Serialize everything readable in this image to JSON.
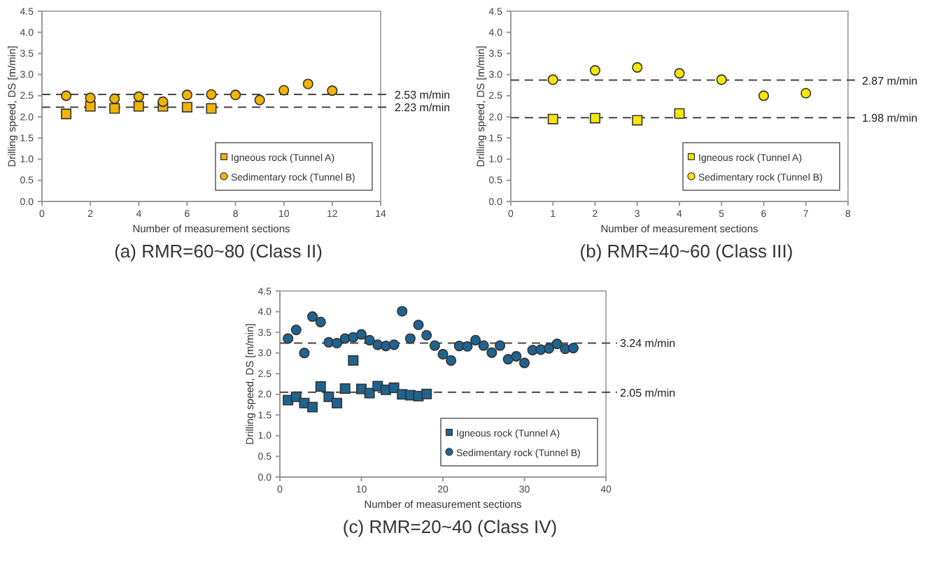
{
  "chart_data": [
    {
      "type": "scatter",
      "title": "(a) RMR=60~80 (Class II)",
      "xlabel": "Number of measurement sections",
      "ylabel": "Drilling speed, DS [m/min]",
      "xlim": [
        0,
        14
      ],
      "xticks": [
        0,
        2,
        4,
        6,
        8,
        10,
        12,
        14
      ],
      "ylim": [
        0,
        4.5
      ],
      "yticks": [
        {
          "value": 0,
          "label": "0.0"
        },
        {
          "value": 0.5,
          "label": "0.5"
        },
        {
          "value": 1,
          "label": "1.0"
        },
        {
          "value": 1.5,
          "label": "1.5"
        },
        {
          "value": 2,
          "label": "2.0"
        },
        {
          "value": 2.5,
          "label": "2.5"
        },
        {
          "value": 3,
          "label": "3.0"
        },
        {
          "value": 3.5,
          "label": "3.5"
        },
        {
          "value": 4,
          "label": "4.0"
        },
        {
          "value": 4.5,
          "label": "4.5"
        }
      ],
      "grid": false,
      "legend": "bottom right",
      "ref_lines": [
        {
          "axis": "y",
          "value": 2.53,
          "label": "2.53 m/min",
          "line_style": "dashed"
        },
        {
          "axis": "y",
          "value": 2.23,
          "label": "2.23 m/min",
          "line_style": "dashed"
        }
      ],
      "series": [
        {
          "name": "Igneous rock (Tunnel A)",
          "color": "#f0b400",
          "marker": "square",
          "x": [
            1,
            2,
            3,
            4,
            5,
            6,
            7
          ],
          "values": [
            2.07,
            2.25,
            2.2,
            2.25,
            2.25,
            2.23,
            2.2
          ]
        },
        {
          "name": "Sedimentary rock (Tunnel B)",
          "color": "#f0b400",
          "marker": "circle",
          "x": [
            1,
            2,
            3,
            4,
            5,
            6,
            7,
            8,
            9,
            10,
            11,
            12
          ],
          "values": [
            2.5,
            2.45,
            2.43,
            2.48,
            2.36,
            2.52,
            2.53,
            2.52,
            2.4,
            2.63,
            2.78,
            2.62
          ]
        }
      ]
    },
    {
      "type": "scatter",
      "title": "(b) RMR=40~60 (Class III)",
      "xlabel": "Number of measurement sections",
      "ylabel": "Drilling speed, DS [m/min]",
      "xlim": [
        0,
        8
      ],
      "xticks": [
        0,
        1,
        2,
        3,
        4,
        5,
        6,
        7,
        8
      ],
      "ylim": [
        0,
        4.5
      ],
      "yticks": [
        {
          "value": 0,
          "label": "0.0"
        },
        {
          "value": 0.5,
          "label": "0.5"
        },
        {
          "value": 1,
          "label": "1.0"
        },
        {
          "value": 1.5,
          "label": "1.5"
        },
        {
          "value": 2,
          "label": "2.0"
        },
        {
          "value": 2.5,
          "label": "2.5"
        },
        {
          "value": 3,
          "label": "3.0"
        },
        {
          "value": 3.5,
          "label": "3.5"
        },
        {
          "value": 4,
          "label": "4.0"
        },
        {
          "value": 4.5,
          "label": "4.5"
        }
      ],
      "grid": false,
      "legend": "bottom right",
      "ref_lines": [
        {
          "axis": "y",
          "value": 2.87,
          "label": "2.87 m/min",
          "line_style": "dashed"
        },
        {
          "axis": "y",
          "value": 1.98,
          "label": "1.98 m/min",
          "line_style": "dashed"
        }
      ],
      "series": [
        {
          "name": "Igneous rock (Tunnel A)",
          "color": "#f5e600",
          "marker": "square",
          "x": [
            1,
            2,
            3,
            4
          ],
          "values": [
            1.95,
            1.97,
            1.92,
            2.08
          ]
        },
        {
          "name": "Sedimentary rock (Tunnel B)",
          "color": "#f5e600",
          "marker": "circle",
          "x": [
            1,
            2,
            3,
            4,
            5,
            6,
            7
          ],
          "values": [
            2.88,
            3.1,
            3.17,
            3.03,
            2.88,
            2.5,
            2.56
          ]
        }
      ]
    },
    {
      "type": "scatter",
      "title": "(c) RMR=20~40 (Class IV)",
      "xlabel": "Number of measurement sections",
      "ylabel": "Drilling speed, DS [m/min]",
      "xlim": [
        0,
        40
      ],
      "xticks": [
        0,
        10,
        20,
        30,
        40
      ],
      "ylim": [
        0,
        4.5
      ],
      "yticks": [
        {
          "value": 0,
          "label": "0.0"
        },
        {
          "value": 0.5,
          "label": "0.5"
        },
        {
          "value": 1,
          "label": "1.0"
        },
        {
          "value": 1.5,
          "label": "1.5"
        },
        {
          "value": 2,
          "label": "2.0"
        },
        {
          "value": 2.5,
          "label": "2.5"
        },
        {
          "value": 3,
          "label": "3.0"
        },
        {
          "value": 3.5,
          "label": "3.5"
        },
        {
          "value": 4,
          "label": "4.0"
        },
        {
          "value": 4.5,
          "label": "4.5"
        }
      ],
      "grid": false,
      "legend": "bottom right",
      "ref_lines": [
        {
          "axis": "y",
          "value": 3.24,
          "label": "3.24 m/min",
          "line_style": "dashed"
        },
        {
          "axis": "y",
          "value": 2.05,
          "label": "2.05 m/min",
          "line_style": "dashed"
        }
      ],
      "series": [
        {
          "name": "Igneous rock (Tunnel A)",
          "color": "#1f6490",
          "marker": "square",
          "x": [
            1,
            2,
            3,
            4,
            5,
            6,
            7,
            8,
            9,
            10,
            11,
            12,
            13,
            14,
            15,
            16,
            17,
            18
          ],
          "values": [
            1.86,
            1.94,
            1.79,
            1.69,
            2.19,
            1.94,
            1.79,
            2.14,
            2.82,
            2.13,
            2.03,
            2.2,
            2.11,
            2.16,
            2.0,
            1.98,
            1.96,
            2.01
          ]
        },
        {
          "name": "Sedimentary rock (Tunnel B)",
          "color": "#1f6490",
          "marker": "circle",
          "x": [
            1,
            2,
            3,
            4,
            5,
            6,
            7,
            8,
            9,
            10,
            11,
            12,
            13,
            14,
            15,
            16,
            17,
            18,
            19,
            20,
            21,
            22,
            23,
            24,
            25,
            26,
            27,
            28,
            29,
            30,
            31,
            32,
            33,
            34,
            35,
            36
          ],
          "values": [
            3.35,
            3.56,
            3.0,
            3.88,
            3.75,
            3.26,
            3.24,
            3.35,
            3.38,
            3.45,
            3.31,
            3.2,
            3.17,
            3.2,
            4.01,
            3.35,
            3.68,
            3.43,
            3.18,
            2.97,
            2.82,
            3.17,
            3.16,
            3.31,
            3.18,
            3.01,
            3.18,
            2.85,
            2.92,
            2.76,
            3.07,
            3.08,
            3.11,
            3.22,
            3.1,
            3.12
          ]
        }
      ]
    }
  ]
}
